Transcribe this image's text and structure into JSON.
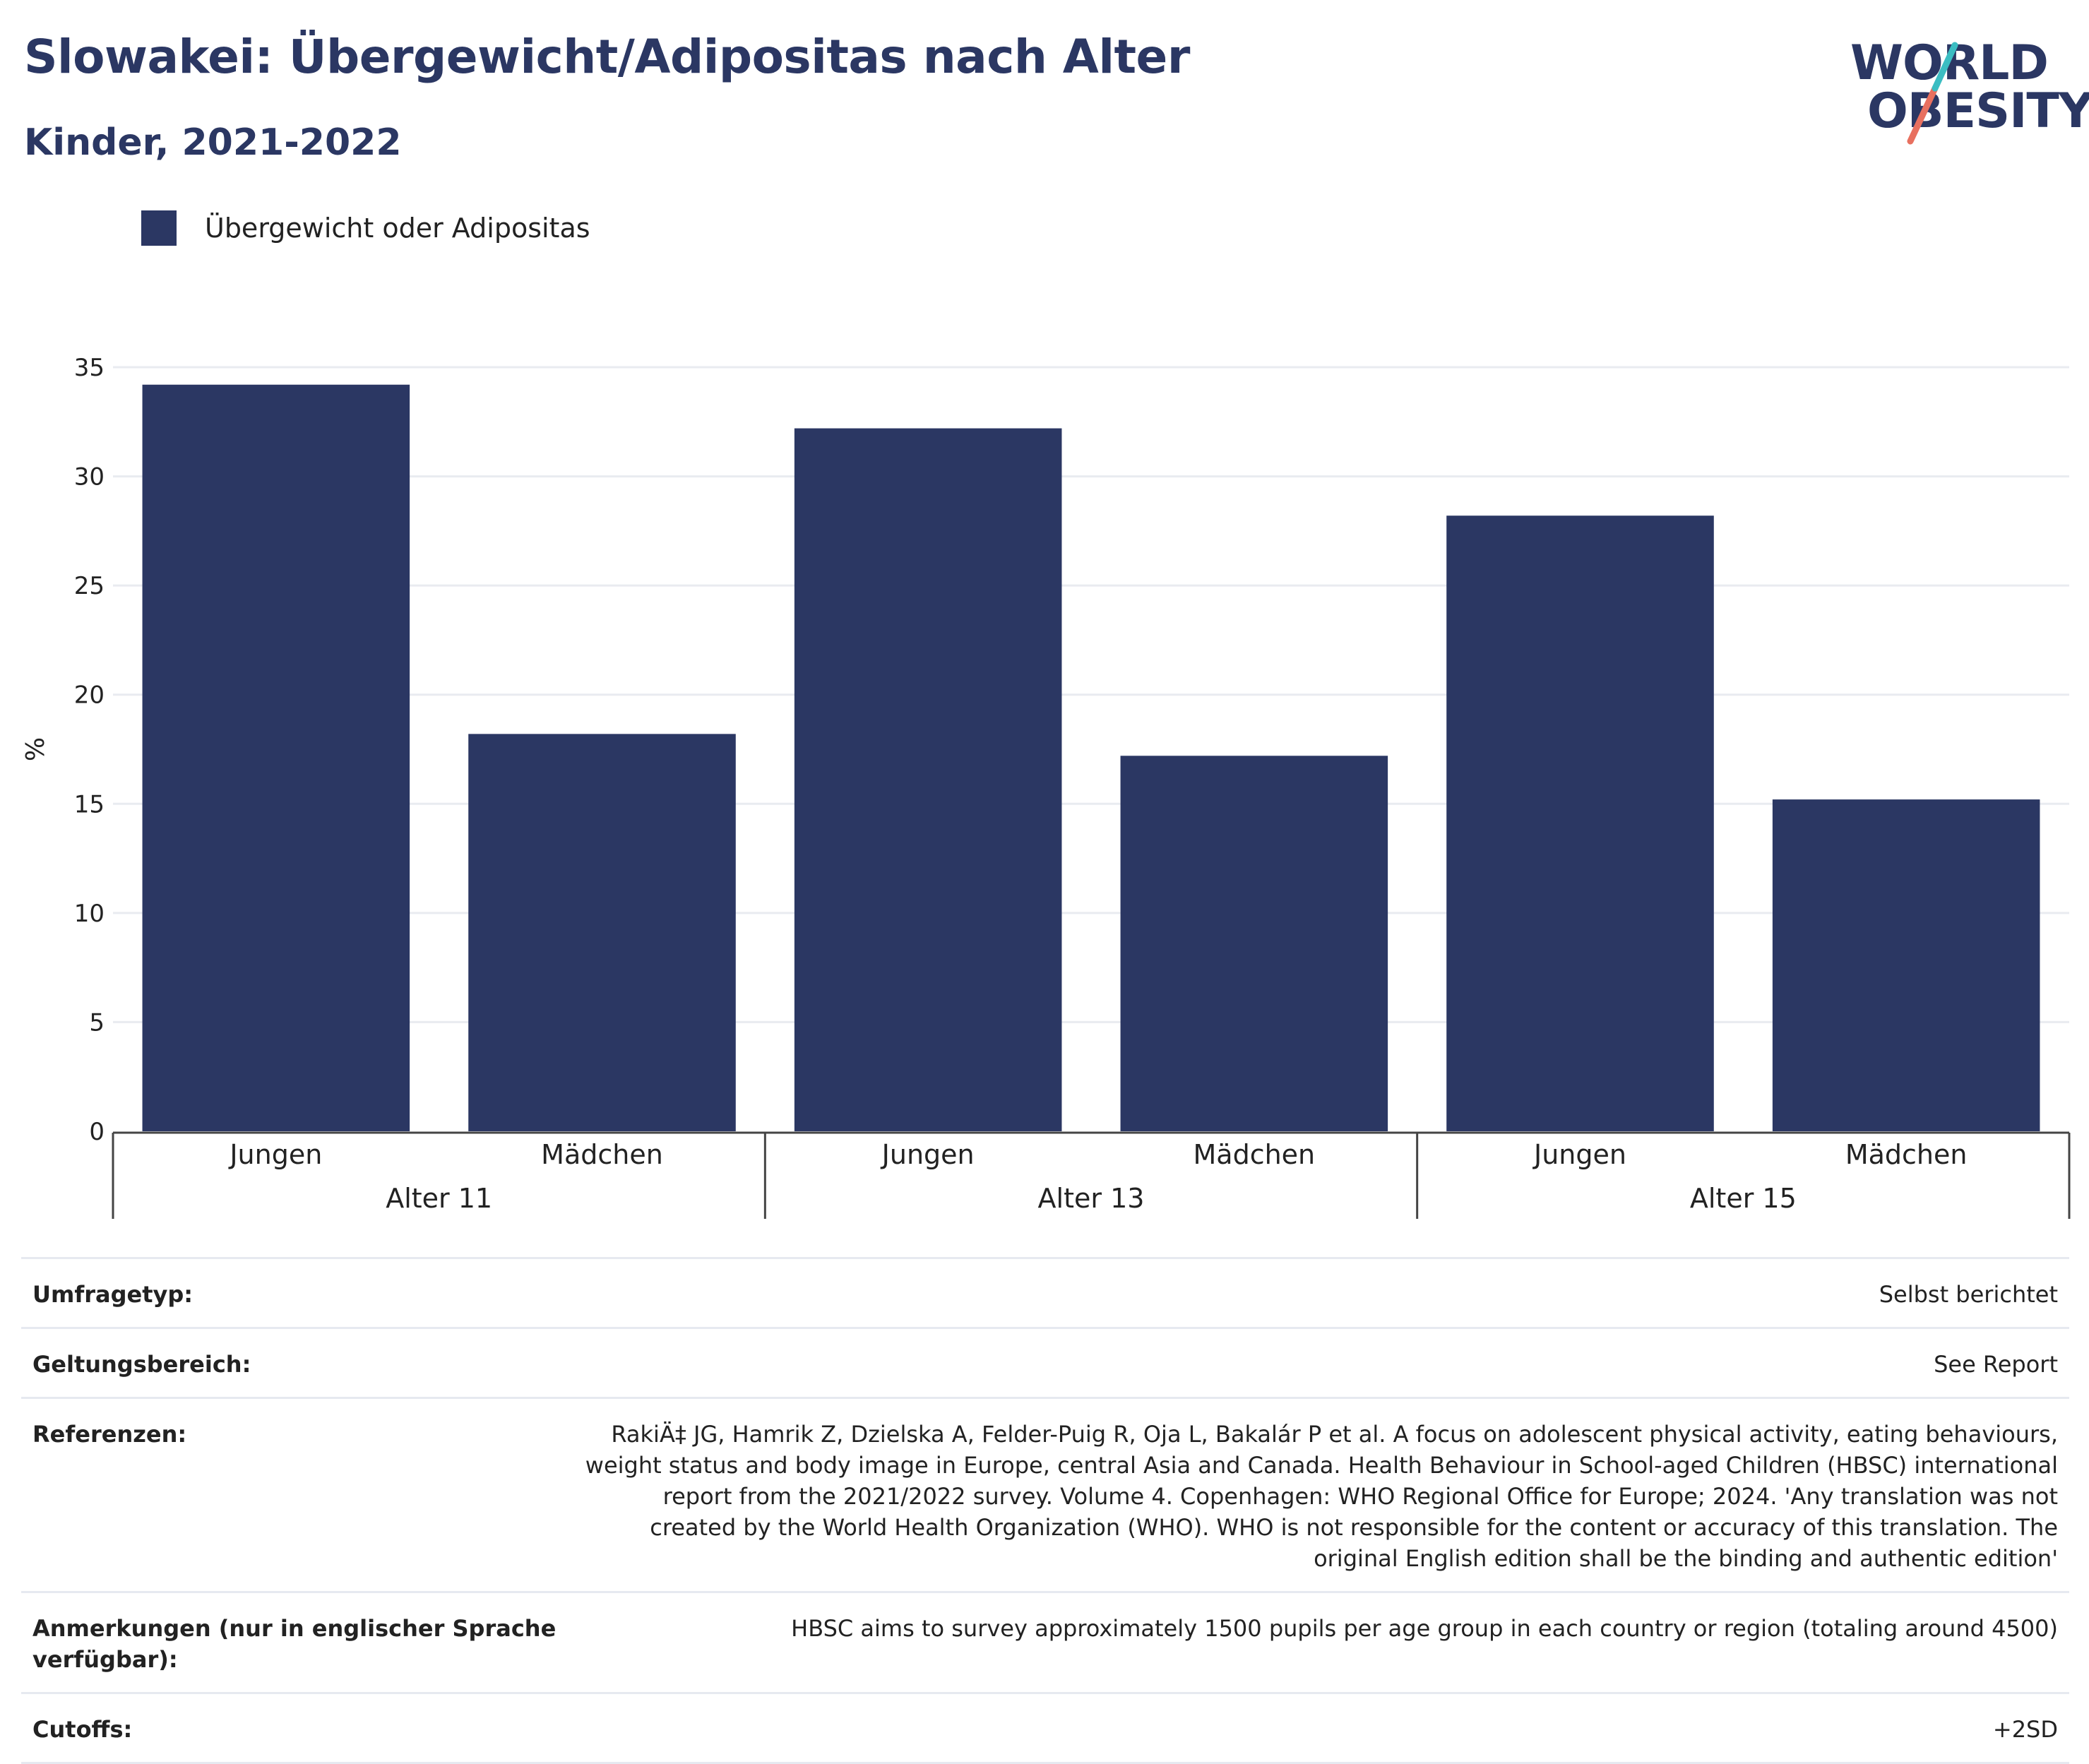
{
  "header": {
    "title": "Slowakei: Übergewicht/Adipositas nach Alter",
    "subtitle": "Kinder, 2021-2022"
  },
  "logo": {
    "line1": "WORLD",
    "line2": "OBESITY",
    "accent_teal": "#3bbdc2",
    "accent_coral": "#e8705f"
  },
  "legend": {
    "label": "Übergewicht oder Adipositas",
    "color": "#2b3763"
  },
  "chart_data": {
    "type": "bar",
    "ylabel": "%",
    "ylim": [
      0,
      35
    ],
    "yticks": [
      0,
      5,
      10,
      15,
      20,
      25,
      30,
      35
    ],
    "grid": true,
    "groups": [
      "Alter 11",
      "Alter 13",
      "Alter 15"
    ],
    "categories": [
      "Jungen",
      "Mädchen",
      "Jungen",
      "Mädchen",
      "Jungen",
      "Mädchen"
    ],
    "series": [
      {
        "name": "Übergewicht oder Adipositas",
        "values": [
          34.2,
          18.2,
          32.2,
          17.2,
          28.2,
          15.2
        ],
        "color": "#2b3763"
      }
    ]
  },
  "meta": [
    {
      "key": "Umfragetyp:",
      "value": "Selbst berichtet"
    },
    {
      "key": "Geltungsbereich:",
      "value": "See Report"
    },
    {
      "key": "Referenzen:",
      "value": "RakiÄ‡ JG, Hamrik Z, Dzielska A, Felder-Puig R, Oja L, Bakalár P et al. A focus on adolescent physical activity, eating behaviours, weight status and body image in Europe, central Asia and Canada. Health Behaviour in School-aged Children (HBSC) international report from the 2021/2022 survey. Volume 4. Copenhagen: WHO Regional Office for Europe; 2024. 'Any translation was not created by the World Health Organization (WHO). WHO is not responsible for the content or accuracy of this translation. The original English edition shall be the binding and authentic edition'"
    },
    {
      "key": "Anmerkungen (nur in englischer Sprache verfügbar):",
      "value": "HBSC aims to survey approximately 1500 pupils per age group in each country or region (totaling around 4500)"
    },
    {
      "key": "Cutoffs:",
      "value": "+2SD"
    }
  ]
}
